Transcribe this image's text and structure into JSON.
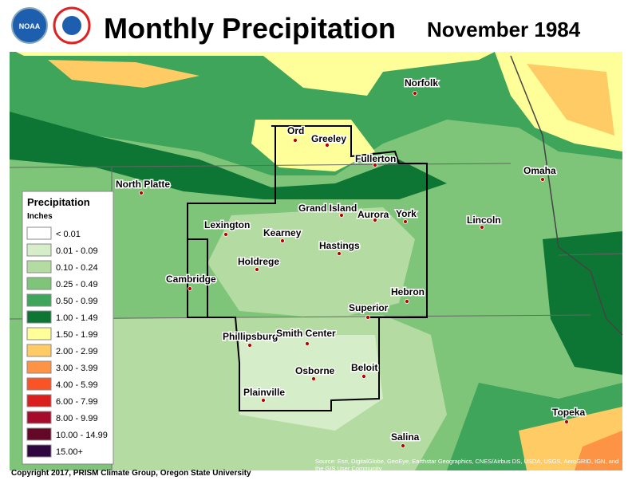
{
  "header": {
    "title": "Monthly Precipitation",
    "date": "November 1984"
  },
  "legend": {
    "title": "Precipitation",
    "units": "Inches",
    "items": [
      {
        "label": "< 0.01",
        "color": "#ffffff"
      },
      {
        "label": "0.01 - 0.09",
        "color": "#d6edc9"
      },
      {
        "label": "0.10 - 0.24",
        "color": "#b4dca2"
      },
      {
        "label": "0.25 - 0.49",
        "color": "#7ec57a"
      },
      {
        "label": "0.50 - 0.99",
        "color": "#3ea55a"
      },
      {
        "label": "1.00 - 1.49",
        "color": "#0e7634"
      },
      {
        "label": "1.50 - 1.99",
        "color": "#ffff99"
      },
      {
        "label": "2.00 - 2.99",
        "color": "#fecb64"
      },
      {
        "label": "3.00 - 3.99",
        "color": "#fd9445"
      },
      {
        "label": "4.00 - 5.99",
        "color": "#f95426"
      },
      {
        "label": "6.00 - 7.99",
        "color": "#d9201f"
      },
      {
        "label": "8.00 - 9.99",
        "color": "#a60b2b"
      },
      {
        "label": "10.00 - 14.99",
        "color": "#630826"
      },
      {
        "label": "15.00+",
        "color": "#2f0640"
      }
    ]
  },
  "cities": [
    "Norfolk",
    "Ord",
    "Greeley",
    "Fullerton",
    "North Platte",
    "Omaha",
    "Grand Island",
    "Aurora",
    "York",
    "Lincoln",
    "Lexington",
    "Kearney",
    "Hastings",
    "Holdrege",
    "Cambridge",
    "Hebron",
    "Superior",
    "Phillipsburg",
    "Smith Center",
    "Beloit",
    "Osborne",
    "Plainville",
    "Topeka",
    "Salina"
  ],
  "footer": {
    "copyright": "Copyright 2017, PRISM Climate Group, Oregon State University",
    "source": "Source: Esri, DigitalGlobe, GeoEye, Earthstar Geographics, CNES/Airbus DS, USDA, USGS, AeroGRID, IGN, and the GIS User Community"
  }
}
